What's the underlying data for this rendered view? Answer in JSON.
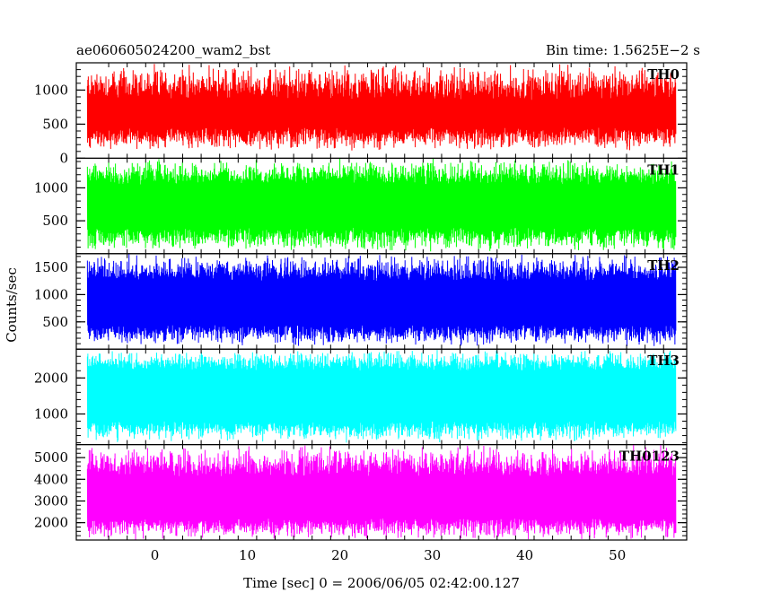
{
  "header": {
    "title": "ae060605024200_wam2_bst",
    "bin_time": "Bin time: 1.5625E−2 s"
  },
  "chart_data": [
    {
      "type": "line",
      "name": "TH0",
      "color": "#ff0000",
      "xlim": [
        -8.5,
        57.5
      ],
      "ylim": [
        0,
        1400
      ],
      "yticks": [
        0,
        500,
        1000
      ],
      "ytick_labels": [
        "0",
        "500",
        "1000"
      ],
      "data_x_range": [
        -7.3,
        56.3
      ],
      "baseline": 650,
      "low_range": [
        100,
        450
      ],
      "high_range": [
        850,
        1400
      ]
    },
    {
      "type": "line",
      "name": "TH1",
      "color": "#00ff00",
      "xlim": [
        -8.5,
        57.5
      ],
      "ylim": [
        0,
        1450
      ],
      "yticks": [
        500,
        1000
      ],
      "ytick_labels": [
        "500",
        "1000"
      ],
      "data_x_range": [
        -7.3,
        56.3
      ],
      "baseline": 750,
      "low_range": [
        20,
        400
      ],
      "high_range": [
        1050,
        1450
      ]
    },
    {
      "type": "line",
      "name": "TH2",
      "color": "#0000ff",
      "xlim": [
        -8.5,
        57.5
      ],
      "ylim": [
        0,
        1750
      ],
      "yticks": [
        500,
        1000,
        1500
      ],
      "ytick_labels": [
        "500",
        "1000",
        "1500"
      ],
      "data_x_range": [
        -7.3,
        56.3
      ],
      "baseline": 850,
      "low_range": [
        50,
        450
      ],
      "high_range": [
        1250,
        1750
      ]
    },
    {
      "type": "line",
      "name": "TH3",
      "color": "#00ffff",
      "xlim": [
        -8.5,
        57.5
      ],
      "ylim": [
        150,
        2800
      ],
      "yticks": [
        1000,
        2000
      ],
      "ytick_labels": [
        "1000",
        "2000"
      ],
      "data_x_range": [
        -7.3,
        56.3
      ],
      "baseline": 1500,
      "low_range": [
        200,
        800
      ],
      "high_range": [
        2200,
        2800
      ]
    },
    {
      "type": "line",
      "name": "TH0123",
      "color": "#ff00ff",
      "xlim": [
        -8.5,
        57.5
      ],
      "ylim": [
        1200,
        5600
      ],
      "yticks": [
        2000,
        3000,
        4000,
        5000
      ],
      "ytick_labels": [
        "2000",
        "3000",
        "4000",
        "5000"
      ],
      "data_x_range": [
        -7.3,
        56.3
      ],
      "baseline": 3100,
      "low_range": [
        1200,
        2200
      ],
      "high_range": [
        4100,
        5600
      ]
    }
  ],
  "axes": {
    "xticks": [
      0,
      10,
      20,
      30,
      40,
      50
    ],
    "xtick_labels": [
      "0",
      "10",
      "20",
      "30",
      "40",
      "50"
    ],
    "xlabel": "Time [sec] 0 = 2006/06/05 02:42:00.127",
    "ylabel": "Counts/sec"
  }
}
